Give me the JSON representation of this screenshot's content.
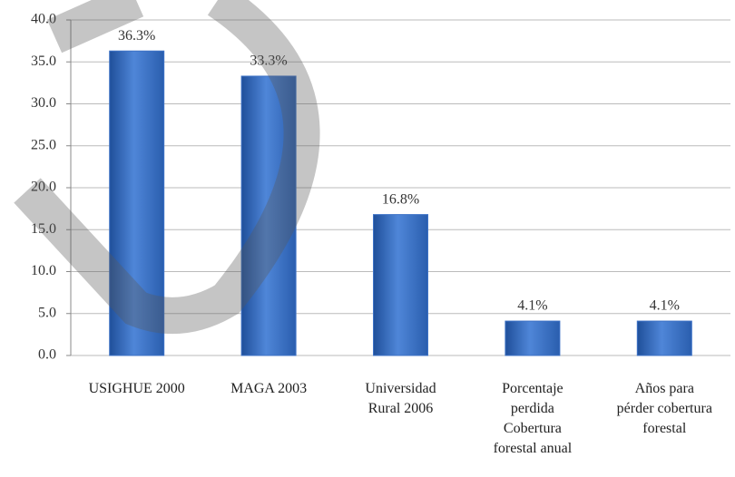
{
  "chart_data": {
    "type": "bar",
    "categories": [
      "USIGHUE 2000",
      "MAGA 2003",
      "Universidad Rural 2006",
      "Porcentaje perdida Cobertura forestal anual",
      "Años para pérder cobertura forestal"
    ],
    "values": [
      36.3,
      33.3,
      16.8,
      4.1,
      4.1
    ],
    "value_labels": [
      "36.3%",
      "33.3%",
      "16.8%",
      "4.1%",
      "4.1%"
    ],
    "color": "#3d72c6",
    "ylim": [
      0,
      40
    ],
    "yticks": [
      {
        "value": 0,
        "label": "0.0"
      },
      {
        "value": 5,
        "label": "5.0"
      },
      {
        "value": 10,
        "label": "10.0"
      },
      {
        "value": 15,
        "label": "15.0"
      },
      {
        "value": 20,
        "label": "20.0"
      },
      {
        "value": 25,
        "label": "25.0"
      },
      {
        "value": 30,
        "label": "30.0"
      },
      {
        "value": 35,
        "label": "35.0"
      },
      {
        "value": 40,
        "label": "40.0"
      }
    ],
    "grid": true
  }
}
